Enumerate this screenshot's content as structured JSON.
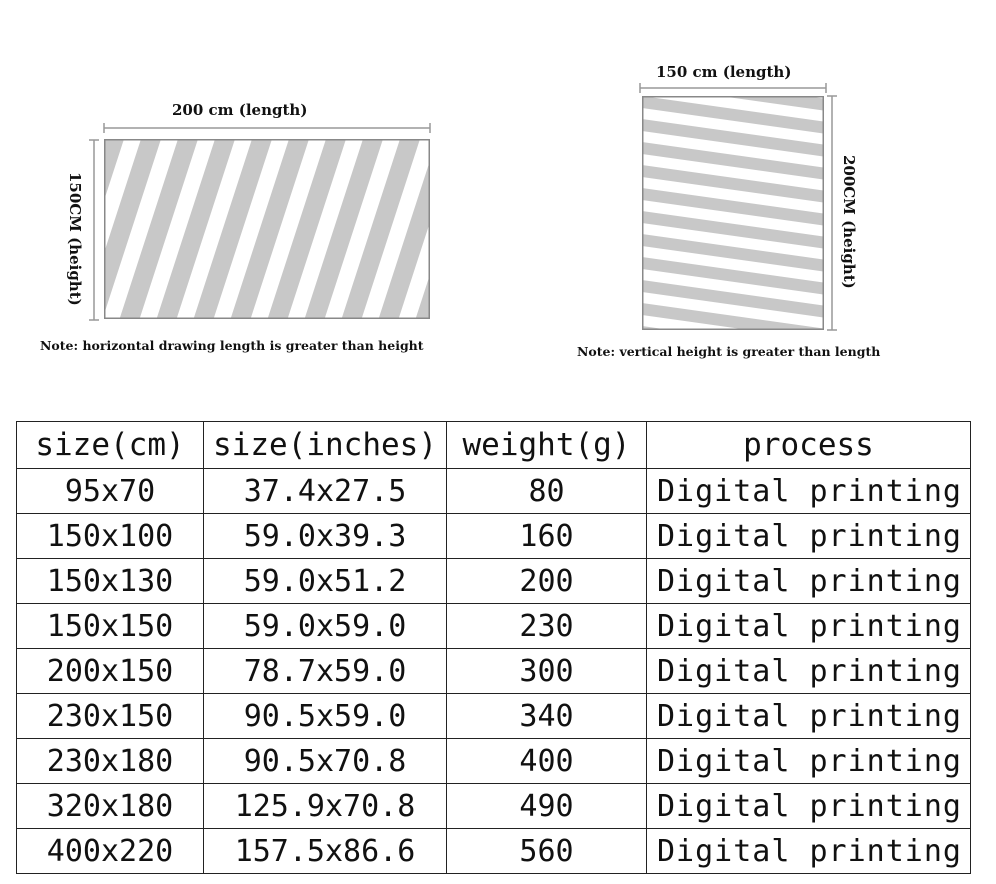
{
  "left_diagram": {
    "length_label": "200 cm (length)",
    "height_label": "150CM (height)",
    "note": "Note: horizontal drawing length is greater than height"
  },
  "right_diagram": {
    "length_label": "150 cm (length)",
    "height_label": "200CM (height)",
    "note": "Note: vertical height is greater than length"
  },
  "colors": {
    "stripe": "#c8c8c8",
    "frame": "#888888",
    "border": "#222222"
  },
  "table": {
    "headers": [
      "size(cm)",
      "size(inches)",
      "weight(g)",
      "process"
    ],
    "rows": [
      [
        "95x70",
        "37.4x27.5",
        "80",
        "Digital printing"
      ],
      [
        "150x100",
        "59.0x39.3",
        "160",
        "Digital printing"
      ],
      [
        "150x130",
        "59.0x51.2",
        "200",
        "Digital printing"
      ],
      [
        "150x150",
        "59.0x59.0",
        "230",
        "Digital printing"
      ],
      [
        "200x150",
        "78.7x59.0",
        "300",
        "Digital printing"
      ],
      [
        "230x150",
        "90.5x59.0",
        "340",
        "Digital printing"
      ],
      [
        "230x180",
        "90.5x70.8",
        "400",
        "Digital printing"
      ],
      [
        "320x180",
        "125.9x70.8",
        "490",
        "Digital printing"
      ],
      [
        "400x220",
        "157.5x86.6",
        "560",
        "Digital printing"
      ]
    ]
  }
}
